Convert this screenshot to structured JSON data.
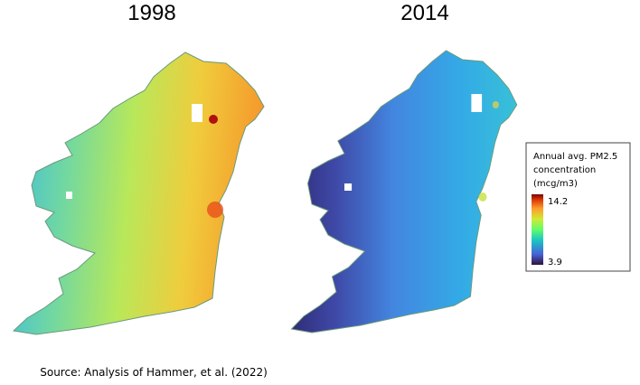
{
  "maps": [
    {
      "title": "1998"
    },
    {
      "title": "2014"
    }
  ],
  "legend": {
    "title_lines": [
      "Annual avg. PM2.5",
      "concentration",
      "(mcg/m3)"
    ],
    "max_label": "14.2",
    "min_label": "3.9"
  },
  "source": "Source: Analysis of Hammer, et al. (2022)"
}
